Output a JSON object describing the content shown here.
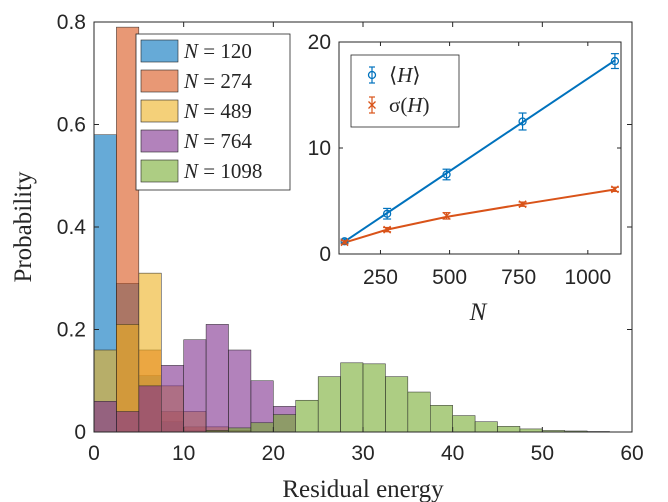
{
  "chart_data": [
    {
      "type": "bar",
      "subtype": "overlapping histogram",
      "xlabel": "Residual energy",
      "ylabel": "Probability",
      "xlim": [
        0,
        60
      ],
      "ylim": [
        0,
        0.8
      ],
      "xticks": [
        "0",
        "10",
        "20",
        "30",
        "40",
        "50",
        "60"
      ],
      "yticks": [
        "0",
        "0.2",
        "0.4",
        "0.6",
        "0.8"
      ],
      "bin_width": 2.5,
      "grid": false,
      "legend_position": "top-left",
      "series": [
        {
          "name": "N = 120",
          "color": "#0072BD",
          "bins": [
            0,
            2.5,
            5,
            7.5,
            10
          ],
          "values": [
            0.58,
            0.29,
            0.11,
            0.02,
            0.003
          ]
        },
        {
          "name": "N = 274",
          "color": "#D95319",
          "bins": [
            2.5,
            5,
            7.5,
            10,
            12.5
          ],
          "values": [
            0.79,
            0.16,
            0.04,
            0.01,
            0.003
          ]
        },
        {
          "name": "N = 489",
          "color": "#EDB120",
          "bins": [
            0,
            2.5,
            5,
            7.5,
            10,
            12.5,
            15
          ],
          "values": [
            0.16,
            0.21,
            0.31,
            0.09,
            0.04,
            0.01,
            0.003
          ]
        },
        {
          "name": "N = 764",
          "color": "#7E2F8E",
          "bins": [
            0,
            2.5,
            5,
            7.5,
            10,
            12.5,
            15,
            17.5,
            20
          ],
          "values": [
            0.06,
            0.04,
            0.09,
            0.13,
            0.18,
            0.21,
            0.16,
            0.1,
            0.05
          ]
        },
        {
          "name": "N = 1098",
          "color": "#77AC30",
          "bins": [
            12.5,
            15,
            17.5,
            20,
            22.5,
            25,
            27.5,
            30,
            32.5,
            35,
            37.5,
            40,
            42.5,
            45,
            47.5,
            50,
            52.5,
            55
          ],
          "values": [
            0.003,
            0.008,
            0.018,
            0.034,
            0.062,
            0.108,
            0.135,
            0.133,
            0.108,
            0.078,
            0.052,
            0.032,
            0.02,
            0.011,
            0.006,
            0.003,
            0.002,
            0.001
          ]
        }
      ]
    },
    {
      "type": "line",
      "subtype": "inset with error bars",
      "xlabel": "N",
      "ylabel": "",
      "xlim": [
        100,
        1120
      ],
      "ylim": [
        0,
        20
      ],
      "xticks": [
        "250",
        "500",
        "750",
        "1000"
      ],
      "yticks": [
        "0",
        "10",
        "20"
      ],
      "legend_position": "top-left",
      "series": [
        {
          "name": "⟨H⟩",
          "label_main": "⟨",
          "label_var": "H",
          "label_tail": "⟩",
          "color": "#0072BD",
          "marker": "circle",
          "x": [
            120,
            274,
            489,
            764,
            1098
          ],
          "y": [
            1.2,
            3.8,
            7.5,
            12.5,
            18.2
          ],
          "err": [
            0.2,
            0.5,
            0.5,
            0.8,
            0.7
          ]
        },
        {
          "name": "σ(H)",
          "label_main": "σ(",
          "label_var": "H",
          "label_tail": ")",
          "color": "#D95319",
          "marker": "x",
          "x": [
            120,
            274,
            489,
            764,
            1098
          ],
          "y": [
            1.1,
            2.3,
            3.6,
            4.7,
            6.1
          ],
          "err": [
            0.15,
            0.2,
            0.3,
            0.2,
            0.2
          ]
        }
      ],
      "fit_lines": [
        {
          "color": "#0072BD",
          "x": [
            110,
            1100
          ],
          "y": [
            1.0,
            18.3
          ]
        },
        {
          "color": "#D95319",
          "x": [
            110,
            274,
            489,
            764,
            1100
          ],
          "y": [
            1.0,
            2.3,
            3.5,
            4.7,
            6.1
          ]
        }
      ]
    }
  ]
}
